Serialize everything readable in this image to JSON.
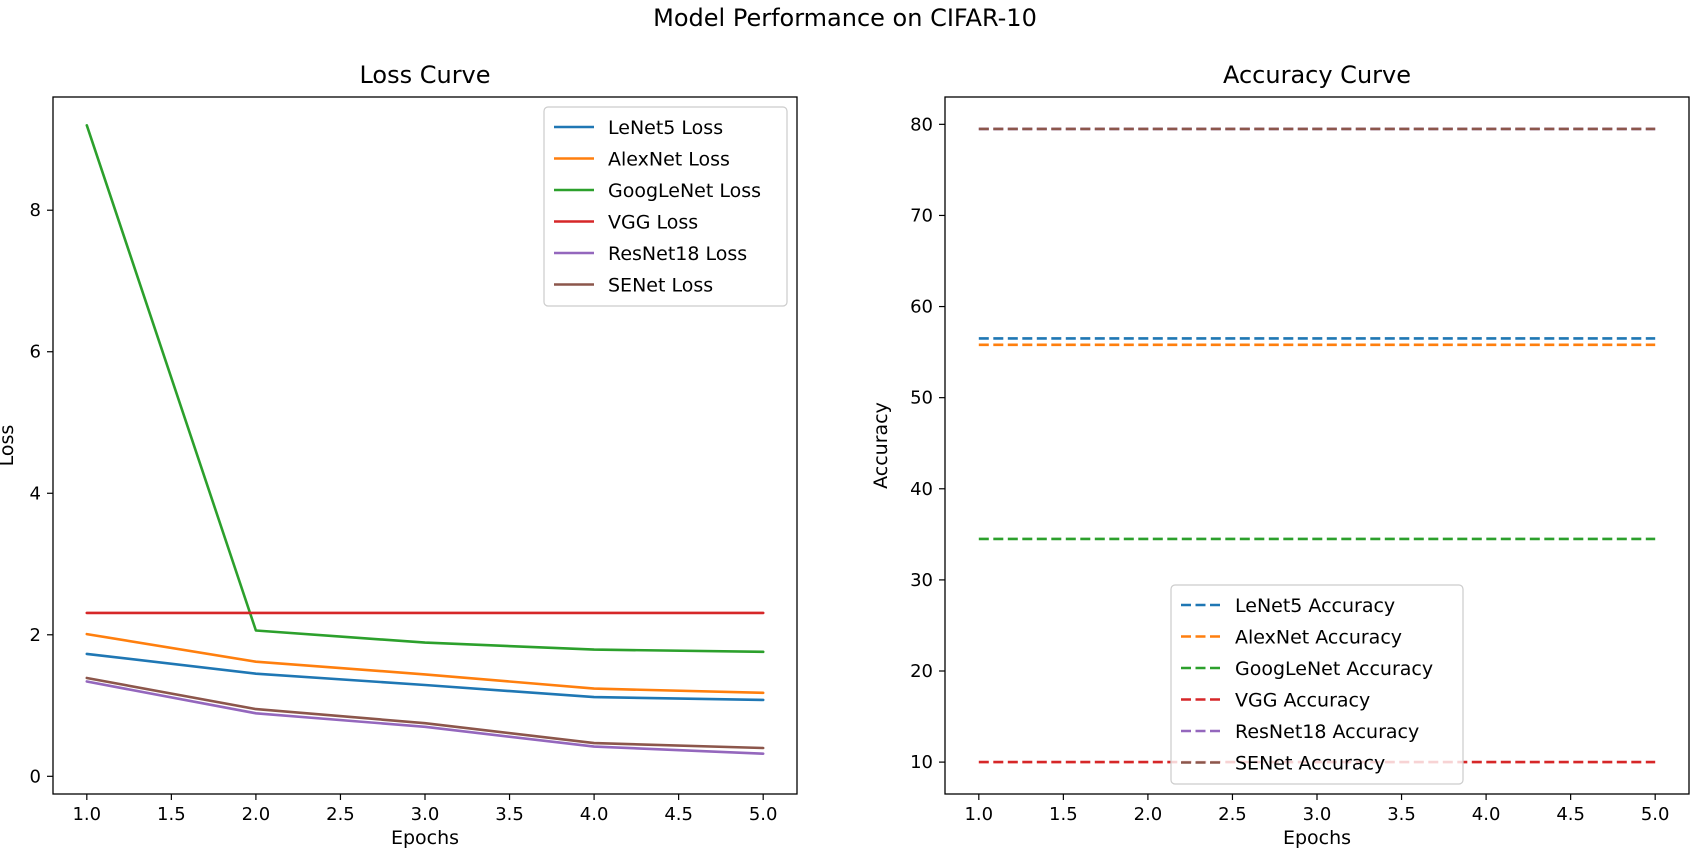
{
  "suptitle": "Model Performance on CIFAR-10",
  "chart_data": [
    {
      "type": "line",
      "title": "Loss Curve",
      "xlabel": "Epochs",
      "ylabel": "Loss",
      "x": [
        1,
        2,
        3,
        4,
        5
      ],
      "xlim": [
        0.8,
        5.2
      ],
      "ylim": [
        -0.25,
        9.6
      ],
      "xticks": [
        1.0,
        1.5,
        2.0,
        2.5,
        3.0,
        3.5,
        4.0,
        4.5,
        5.0
      ],
      "yticks": [
        0,
        2,
        4,
        6,
        8
      ],
      "legend_position": "upper right",
      "grid": false,
      "series": [
        {
          "name": "LeNet5 Loss",
          "color": "#1f77b4",
          "style": "solid",
          "values": [
            1.73,
            1.45,
            1.29,
            1.12,
            1.08
          ]
        },
        {
          "name": "AlexNet Loss",
          "color": "#ff7f0e",
          "style": "solid",
          "values": [
            2.01,
            1.62,
            1.44,
            1.24,
            1.18
          ]
        },
        {
          "name": "GoogLeNet Loss",
          "color": "#2ca02c",
          "style": "solid",
          "values": [
            9.2,
            2.06,
            1.89,
            1.79,
            1.76
          ]
        },
        {
          "name": "VGG Loss",
          "color": "#d62728",
          "style": "solid",
          "values": [
            2.31,
            2.31,
            2.31,
            2.31,
            2.31
          ]
        },
        {
          "name": "ResNet18 Loss",
          "color": "#9467bd",
          "style": "solid",
          "values": [
            1.34,
            0.89,
            0.7,
            0.42,
            0.32
          ]
        },
        {
          "name": "SENet Loss",
          "color": "#8c564b",
          "style": "solid",
          "values": [
            1.39,
            0.95,
            0.75,
            0.47,
            0.4
          ]
        }
      ]
    },
    {
      "type": "line",
      "title": "Accuracy Curve",
      "xlabel": "Epochs",
      "ylabel": "Accuracy",
      "x": [
        1,
        2,
        3,
        4,
        5
      ],
      "xlim": [
        0.8,
        5.2
      ],
      "ylim": [
        6.5,
        83
      ],
      "xticks": [
        1.0,
        1.5,
        2.0,
        2.5,
        3.0,
        3.5,
        4.0,
        4.5,
        5.0
      ],
      "yticks": [
        10,
        20,
        30,
        40,
        50,
        60,
        70,
        80
      ],
      "legend_position": "lower center",
      "grid": false,
      "series": [
        {
          "name": "LeNet5 Accuracy",
          "color": "#1f77b4",
          "style": "dashed",
          "values": [
            56.5,
            56.5,
            56.5,
            56.5,
            56.5
          ]
        },
        {
          "name": "AlexNet Accuracy",
          "color": "#ff7f0e",
          "style": "dashed",
          "values": [
            55.8,
            55.8,
            55.8,
            55.8,
            55.8
          ]
        },
        {
          "name": "GoogLeNet Accuracy",
          "color": "#2ca02c",
          "style": "dashed",
          "values": [
            34.5,
            34.5,
            34.5,
            34.5,
            34.5
          ]
        },
        {
          "name": "VGG Accuracy",
          "color": "#d62728",
          "style": "dashed",
          "values": [
            10.0,
            10.0,
            10.0,
            10.0,
            10.0
          ]
        },
        {
          "name": "ResNet18 Accuracy",
          "color": "#9467bd",
          "style": "dashed",
          "values": [
            79.5,
            79.5,
            79.5,
            79.5,
            79.5
          ]
        },
        {
          "name": "SENet Accuracy",
          "color": "#8c564b",
          "style": "dashed",
          "values": [
            79.5,
            79.5,
            79.5,
            79.5,
            79.5
          ]
        }
      ]
    }
  ]
}
